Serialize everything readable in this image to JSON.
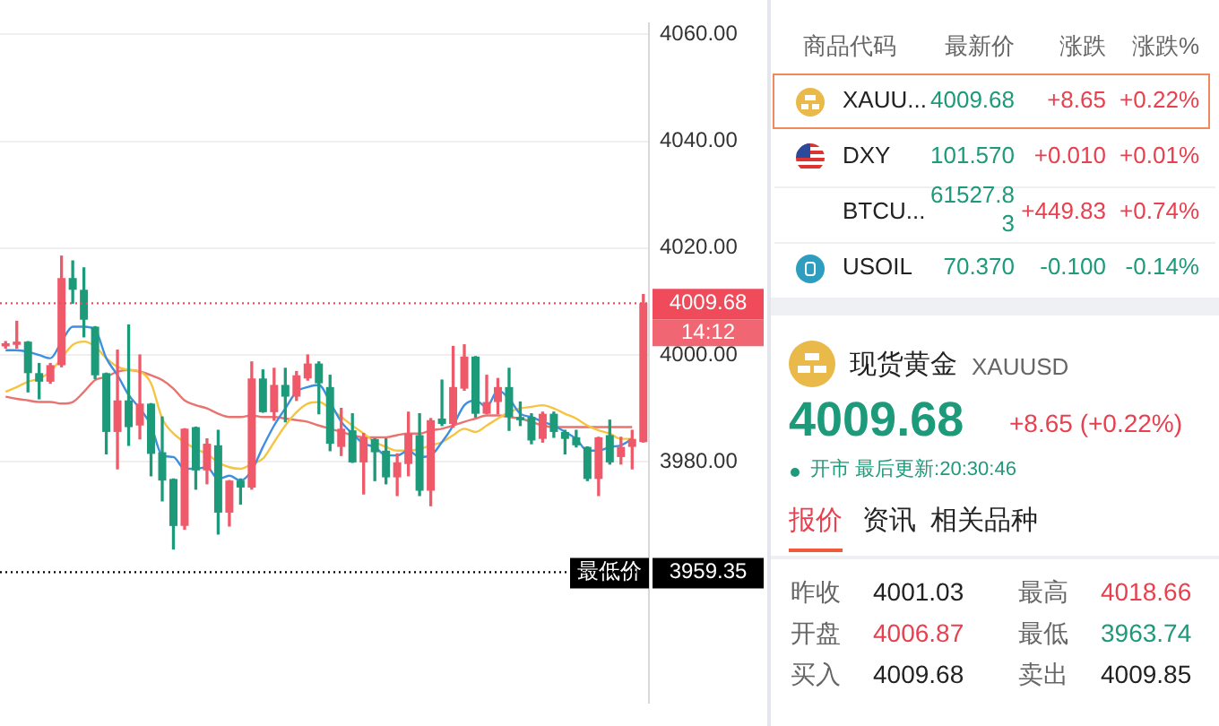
{
  "chart_data": [
    {
      "type": "candlestick",
      "categories": [
        null,
        null,
        null,
        null,
        null,
        null,
        null,
        null,
        null,
        null,
        null,
        null,
        null,
        null,
        null,
        null,
        null,
        null,
        null,
        null,
        null,
        null,
        null,
        null,
        null,
        null,
        null,
        null,
        null,
        null,
        null,
        null,
        null,
        null,
        null,
        null,
        null,
        null,
        null,
        null,
        null,
        null,
        null,
        null,
        null,
        null,
        null,
        null,
        null,
        null,
        null,
        null,
        null,
        null,
        null,
        null,
        null,
        null
      ],
      "ohlc": [
        [
          4001.6,
          4002.5,
          4001.3,
          4002.2
        ],
        [
          4001.9,
          4006.3,
          4001.3,
          4002.5
        ],
        [
          4002.5,
          4002.5,
          3993.1,
          3996.6
        ],
        [
          3996.6,
          3998.4,
          3991.8,
          3995.0
        ],
        [
          3995.0,
          3998.4,
          3994.7,
          3998.1
        ],
        [
          3998.1,
          4018.5,
          3997.8,
          4014.4
        ],
        [
          4014.4,
          4017.6,
          4009.7,
          4012.2
        ],
        [
          4012.2,
          4016.3,
          4003.4,
          4006.6
        ],
        [
          4005.3,
          4005.3,
          3995.6,
          3996.2
        ],
        [
          3996.6,
          3996.6,
          3981.5,
          3985.6
        ],
        [
          3985.6,
          4000.9,
          3978.7,
          3991.5
        ],
        [
          3991.5,
          4005.6,
          3983.1,
          3986.5
        ],
        [
          3986.8,
          4000.0,
          3984.3,
          3990.9
        ],
        [
          3990.9,
          3990.9,
          3977.4,
          3981.5
        ],
        [
          3981.8,
          3988.4,
          3972.7,
          3976.5
        ],
        [
          3976.8,
          3976.8,
          3963.7,
          3968.0
        ],
        [
          3968.0,
          3986.2,
          3967.4,
          3986.2
        ],
        [
          3986.5,
          3986.5,
          3974.9,
          3978.4
        ],
        [
          3978.4,
          3984.3,
          3975.9,
          3983.4
        ],
        [
          3983.1,
          3985.9,
          3966.5,
          3970.5
        ],
        [
          3970.5,
          3976.5,
          3968.0,
          3976.5
        ],
        [
          3976.5,
          3976.8,
          3972.1,
          3975.2
        ],
        [
          3975.2,
          3998.7,
          3974.9,
          3995.6
        ],
        [
          3995.6,
          3997.2,
          3989.3,
          3989.3
        ],
        [
          3989.3,
          3997.5,
          3987.8,
          3994.4
        ],
        [
          3994.4,
          3997.5,
          3987.5,
          3992.2
        ],
        [
          3992.2,
          3996.9,
          3991.5,
          3996.2
        ],
        [
          3995.6,
          4000.0,
          3995.3,
          3998.4
        ],
        [
          3998.4,
          3998.7,
          3989.0,
          3994.7
        ],
        [
          3994.0,
          3996.2,
          3982.1,
          3983.4
        ],
        [
          3982.8,
          3990.0,
          3981.2,
          3986.2
        ],
        [
          3985.9,
          3989.0,
          3979.9,
          3979.9
        ],
        [
          3979.9,
          3985.3,
          3974.0,
          3984.6
        ],
        [
          3984.3,
          3984.3,
          3976.5,
          3981.8
        ],
        [
          3982.1,
          3984.3,
          3975.9,
          3977.1
        ],
        [
          3977.1,
          3981.5,
          3973.7,
          3979.9
        ],
        [
          3979.6,
          3989.3,
          3977.4,
          3985.3
        ],
        [
          3985.0,
          3989.0,
          3973.7,
          3974.6
        ],
        [
          3974.6,
          3988.1,
          3971.8,
          3987.8
        ],
        [
          3988.1,
          3995.3,
          3986.8,
          3987.1
        ],
        [
          3987.1,
          4001.6,
          3986.5,
          3994.0
        ],
        [
          3993.7,
          4001.9,
          3993.4,
          3999.7
        ],
        [
          3999.7,
          3999.7,
          3988.4,
          3989.0
        ],
        [
          3989.0,
          3996.2,
          3989.0,
          3991.2
        ],
        [
          3991.2,
          3995.6,
          3989.0,
          3994.0
        ],
        [
          3994.0,
          3997.5,
          3985.9,
          3988.4
        ],
        [
          3988.4,
          3991.2,
          3986.8,
          3987.8
        ],
        [
          3988.4,
          3989.0,
          3983.4,
          3984.0
        ],
        [
          3984.3,
          3989.3,
          3983.7,
          3989.0
        ],
        [
          3989.0,
          3989.3,
          3984.6,
          3985.6
        ],
        [
          3985.6,
          3985.9,
          3981.5,
          3984.3
        ],
        [
          3984.6,
          3985.9,
          3982.8,
          3983.1
        ],
        [
          3982.8,
          3982.8,
          3976.5,
          3976.8
        ],
        [
          3976.8,
          3984.6,
          3973.7,
          3984.6
        ],
        [
          3985.0,
          3987.8,
          3979.6,
          3979.9
        ],
        [
          3980.9,
          3984.6,
          3979.6,
          3982.8
        ],
        [
          3982.8,
          3985.9,
          3978.7,
          3984.3
        ],
        [
          3983.7,
          4011.3,
          3983.7,
          4009.68
        ]
      ],
      "colors": [
        "#ef5a6a",
        "#ef5a6a",
        "#1d9a7a",
        "#1d9a7a",
        "#ef5a6a",
        "#ef5a6a",
        "#1d9a7a",
        "#1d9a7a",
        "#1d9a7a",
        "#1d9a7a",
        "#ef5a6a",
        "#1d9a7a",
        "#ef5a6a",
        "#1d9a7a",
        "#1d9a7a",
        "#1d9a7a",
        "#ef5a6a",
        "#1d9a7a",
        "#ef5a6a",
        "#1d9a7a",
        "#ef5a6a",
        "#1d9a7a",
        "#ef5a6a",
        "#1d9a7a",
        "#ef5a6a",
        "#1d9a7a",
        "#ef5a6a",
        "#ef5a6a",
        "#1d9a7a",
        "#1d9a7a",
        "#ef5a6a",
        "#1d9a7a",
        "#ef5a6a",
        "#1d9a7a",
        "#1d9a7a",
        "#ef5a6a",
        "#ef5a6a",
        "#1d9a7a",
        "#ef5a6a",
        "#1d9a7a",
        "#ef5a6a",
        "#ef5a6a",
        "#1d9a7a",
        "#ef5a6a",
        "#ef5a6a",
        "#1d9a7a",
        "#1d9a7a",
        "#1d9a7a",
        "#ef5a6a",
        "#1d9a7a",
        "#1d9a7a",
        "#1d9a7a",
        "#1d9a7a",
        "#ef5a6a",
        "#1d9a7a",
        "#ef5a6a",
        "#ef5a6a",
        "#ef5a6a"
      ],
      "series": [
        {
          "type": "line",
          "color": "#3d8fe0",
          "values": [
            4000.9,
            4000.9,
            4000.6,
            4000.0,
            3999.4,
            4002.5,
            4005.3,
            4005.3,
            4004.7,
            3999.4,
            3996.2,
            3992.5,
            3990.0,
            3986.8,
            3981.2,
            3980.9,
            3978.7,
            3978.7,
            3979.0,
            3976.8,
            3977.4,
            3976.5,
            3978.4,
            3982.8,
            3986.8,
            3990.0,
            3993.1,
            3994.0,
            3994.4,
            3991.2,
            3987.5,
            3985.3,
            3983.4,
            3982.8,
            3981.2,
            3981.2,
            3982.1,
            3980.9,
            3981.2,
            3983.7,
            3986.8,
            3990.6,
            3991.5,
            3990.3,
            3993.4,
            3991.8,
            3989.0,
            3988.4,
            3987.5,
            3986.8,
            3985.6,
            3984.3,
            3982.1,
            3982.1,
            3982.8,
            3983.1,
            3984.3,
            null
          ]
        },
        {
          "type": "line",
          "color": "#f5c542",
          "values": [
            3993.1,
            3994.0,
            3995.0,
            3995.6,
            3996.9,
            3999.4,
            4001.9,
            4002.5,
            4001.6,
            3999.4,
            3997.8,
            3997.2,
            3996.9,
            3994.7,
            3988.1,
            3985.3,
            3983.7,
            3982.4,
            3981.5,
            3979.9,
            3979.0,
            3978.7,
            3979.6,
            3980.6,
            3983.7,
            3986.8,
            3989.3,
            3990.9,
            3991.2,
            3990.0,
            3988.4,
            3986.8,
            3985.3,
            3983.7,
            3982.8,
            3982.1,
            3982.1,
            3982.4,
            3983.1,
            3983.7,
            3985.0,
            3986.2,
            3985.6,
            3986.8,
            3988.1,
            3989.3,
            3990.0,
            3990.3,
            3990.6,
            3990.0,
            3989.0,
            3988.1,
            3986.8,
            3985.9,
            3985.3,
            3984.3,
            3984.3,
            null
          ]
        },
        {
          "type": "line",
          "color": "#e8736f",
          "values": [
            3992.2,
            3991.8,
            3991.5,
            3991.2,
            3991.2,
            3990.9,
            3991.2,
            3993.1,
            3995.3,
            3995.9,
            3996.9,
            3997.2,
            3996.9,
            3996.2,
            3995.3,
            3993.7,
            3991.5,
            3990.6,
            3990.0,
            3989.0,
            3988.4,
            3988.4,
            3988.7,
            3988.4,
            3988.4,
            3988.1,
            3987.8,
            3987.5,
            3986.8,
            3986.2,
            3985.6,
            3985.0,
            3984.6,
            3984.6,
            3984.6,
            3985.0,
            3985.3,
            3985.3,
            3985.9,
            3986.2,
            3986.8,
            3987.5,
            3988.1,
            3988.7,
            3988.7,
            3988.4,
            3988.1,
            3987.5,
            3986.8,
            3986.5,
            3986.5,
            3986.5,
            3986.5,
            3986.5,
            3986.5,
            3986.5,
            3986.5,
            null
          ]
        }
      ],
      "ylim": [
        3935,
        4062
      ],
      "yticks": [
        {
          "value": 3980,
          "label": "3980.00"
        },
        {
          "value": 4000,
          "label": "4000.00"
        },
        {
          "value": 4020,
          "label": "4020.00"
        },
        {
          "value": 4040,
          "label": "4040.00"
        },
        {
          "value": 4060,
          "label": "4060.00"
        }
      ],
      "ref_lines": [
        {
          "axis": "y",
          "value": 4009.68,
          "label": "4009.68",
          "color": "#ef4b5a",
          "line_style": "dotted"
        },
        {
          "axis": "y",
          "value": 3959.35,
          "label": "3959.35",
          "color": "#000000",
          "line_style": "dotted"
        }
      ],
      "annotations": [
        "14:12",
        {
          "text": "最低价",
          "y": 3959.35
        }
      ],
      "grid": "y",
      "tick_labels": "y"
    },
    {
      "type": "other",
      "annotations": [
        "商品代码",
        "最新价",
        "涨跌",
        "涨跌%",
        "XAUU...",
        "4009.68",
        "+8.65",
        "+0.22%",
        "DXY",
        "101.570",
        "+0.010",
        "+0.01%",
        "BTCU...",
        "61527.83",
        "+449.83",
        "+0.74%",
        "USOIL",
        "70.370",
        "-0.100",
        "-0.14%",
        "现货黄金",
        "XAUUSD",
        "4009.68",
        "+8.65 (+0.22%)",
        "开市 最后更新:20:30:46",
        "报价",
        "资讯",
        "相关品种",
        "昨收",
        "4001.03",
        "最高",
        "4018.66",
        "开盘",
        "4006.87",
        "最低",
        "3963.74",
        "买入",
        "4009.68",
        "卖出",
        "4009.85"
      ]
    }
  ]
}
